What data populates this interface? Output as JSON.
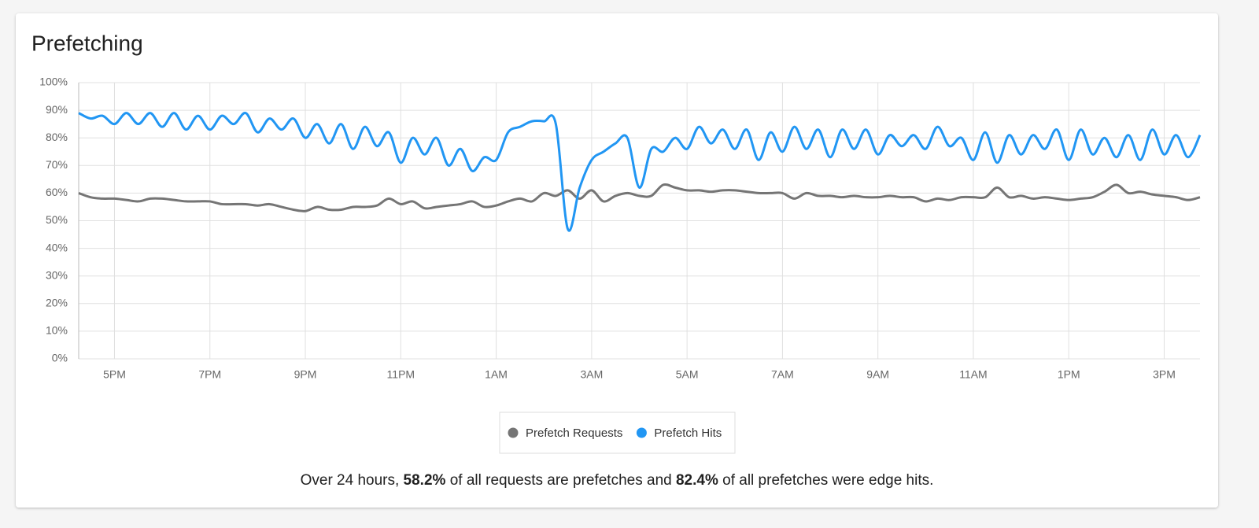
{
  "chart_data": {
    "type": "line",
    "title": "Prefetching",
    "categories": [
      null,
      null,
      null,
      "5PM",
      null,
      null,
      null,
      null,
      null,
      null,
      null,
      "7PM",
      null,
      null,
      null,
      null,
      null,
      null,
      null,
      "9PM",
      null,
      null,
      null,
      null,
      null,
      null,
      null,
      "11PM",
      null,
      null,
      null,
      null,
      null,
      null,
      null,
      "1AM",
      null,
      null,
      null,
      null,
      null,
      null,
      null,
      "3AM",
      null,
      null,
      null,
      null,
      null,
      null,
      null,
      "5AM",
      null,
      null,
      null,
      null,
      null,
      null,
      null,
      "7AM",
      null,
      null,
      null,
      null,
      null,
      null,
      null,
      "9AM",
      null,
      null,
      null,
      null,
      null,
      null,
      null,
      "11AM",
      null,
      null,
      null,
      null,
      null,
      null,
      null,
      "1PM",
      null,
      null,
      null,
      null,
      null,
      null,
      null,
      "3PM",
      null,
      null,
      null
    ],
    "series": [
      {
        "name": "Prefetch Requests",
        "color": "#757575",
        "values": [
          60,
          58.5,
          58,
          58,
          57.5,
          57,
          58,
          58,
          57.5,
          57,
          57,
          57,
          56,
          56,
          56,
          55.5,
          56,
          55,
          54,
          53.5,
          55,
          54,
          54,
          55,
          55,
          55.5,
          58,
          56,
          57,
          54.5,
          55,
          55.5,
          56,
          57,
          55,
          55.5,
          57,
          58,
          57,
          60,
          59,
          61,
          58,
          61,
          57,
          59,
          60,
          59,
          59,
          63,
          62,
          61,
          61,
          60.5,
          61,
          61,
          60.5,
          60,
          60,
          60,
          58,
          60,
          59,
          59,
          58.5,
          59,
          58.5,
          58.5,
          59,
          58.5,
          58.5,
          57,
          58,
          57.5,
          58.5,
          58.5,
          58.5,
          62,
          58.5,
          59,
          58,
          58.5,
          58,
          57.5,
          58,
          58.5,
          60.5,
          63,
          60,
          60.5,
          59.5,
          59,
          58.5,
          57.5,
          58.5
        ]
      },
      {
        "name": "Prefetch Hits",
        "color": "#2196f3",
        "values": [
          89,
          87,
          88,
          85,
          89,
          85,
          89,
          84,
          89,
          83,
          88,
          83,
          88,
          85,
          89,
          82,
          87,
          83,
          87,
          80,
          85,
          78,
          85,
          76,
          84,
          77,
          82,
          71,
          80,
          74,
          80,
          70,
          76,
          68,
          73,
          72,
          82,
          84,
          86,
          86,
          85,
          47,
          62,
          72,
          75,
          78,
          80,
          62,
          76,
          75,
          80,
          76,
          84,
          78,
          83,
          76,
          83,
          72,
          82,
          75,
          84,
          76,
          83,
          73,
          83,
          76,
          83,
          74,
          81,
          77,
          81,
          76,
          84,
          77,
          80,
          72,
          82,
          71,
          81,
          74,
          81,
          76,
          83,
          72,
          83,
          74,
          80,
          73,
          81,
          72,
          83,
          74,
          81,
          73,
          81
        ]
      }
    ],
    "ylim": [
      0,
      100
    ],
    "yticks": [
      {
        "value": 0,
        "label": "0%"
      },
      {
        "value": 10,
        "label": "10%"
      },
      {
        "value": 20,
        "label": "20%"
      },
      {
        "value": 30,
        "label": "30%"
      },
      {
        "value": 40,
        "label": "40%"
      },
      {
        "value": 50,
        "label": "50%"
      },
      {
        "value": 60,
        "label": "60%"
      },
      {
        "value": 70,
        "label": "70%"
      },
      {
        "value": 80,
        "label": "80%"
      },
      {
        "value": 90,
        "label": "90%"
      },
      {
        "value": 100,
        "label": "100%"
      }
    ],
    "grid": true,
    "legend": "bottom"
  },
  "summary": {
    "part1": "Over 24 hours, ",
    "stat1": "58.2%",
    "part2": " of all requests are prefetches and ",
    "stat2": "82.4%",
    "part3": " of all prefetches were edge hits."
  }
}
